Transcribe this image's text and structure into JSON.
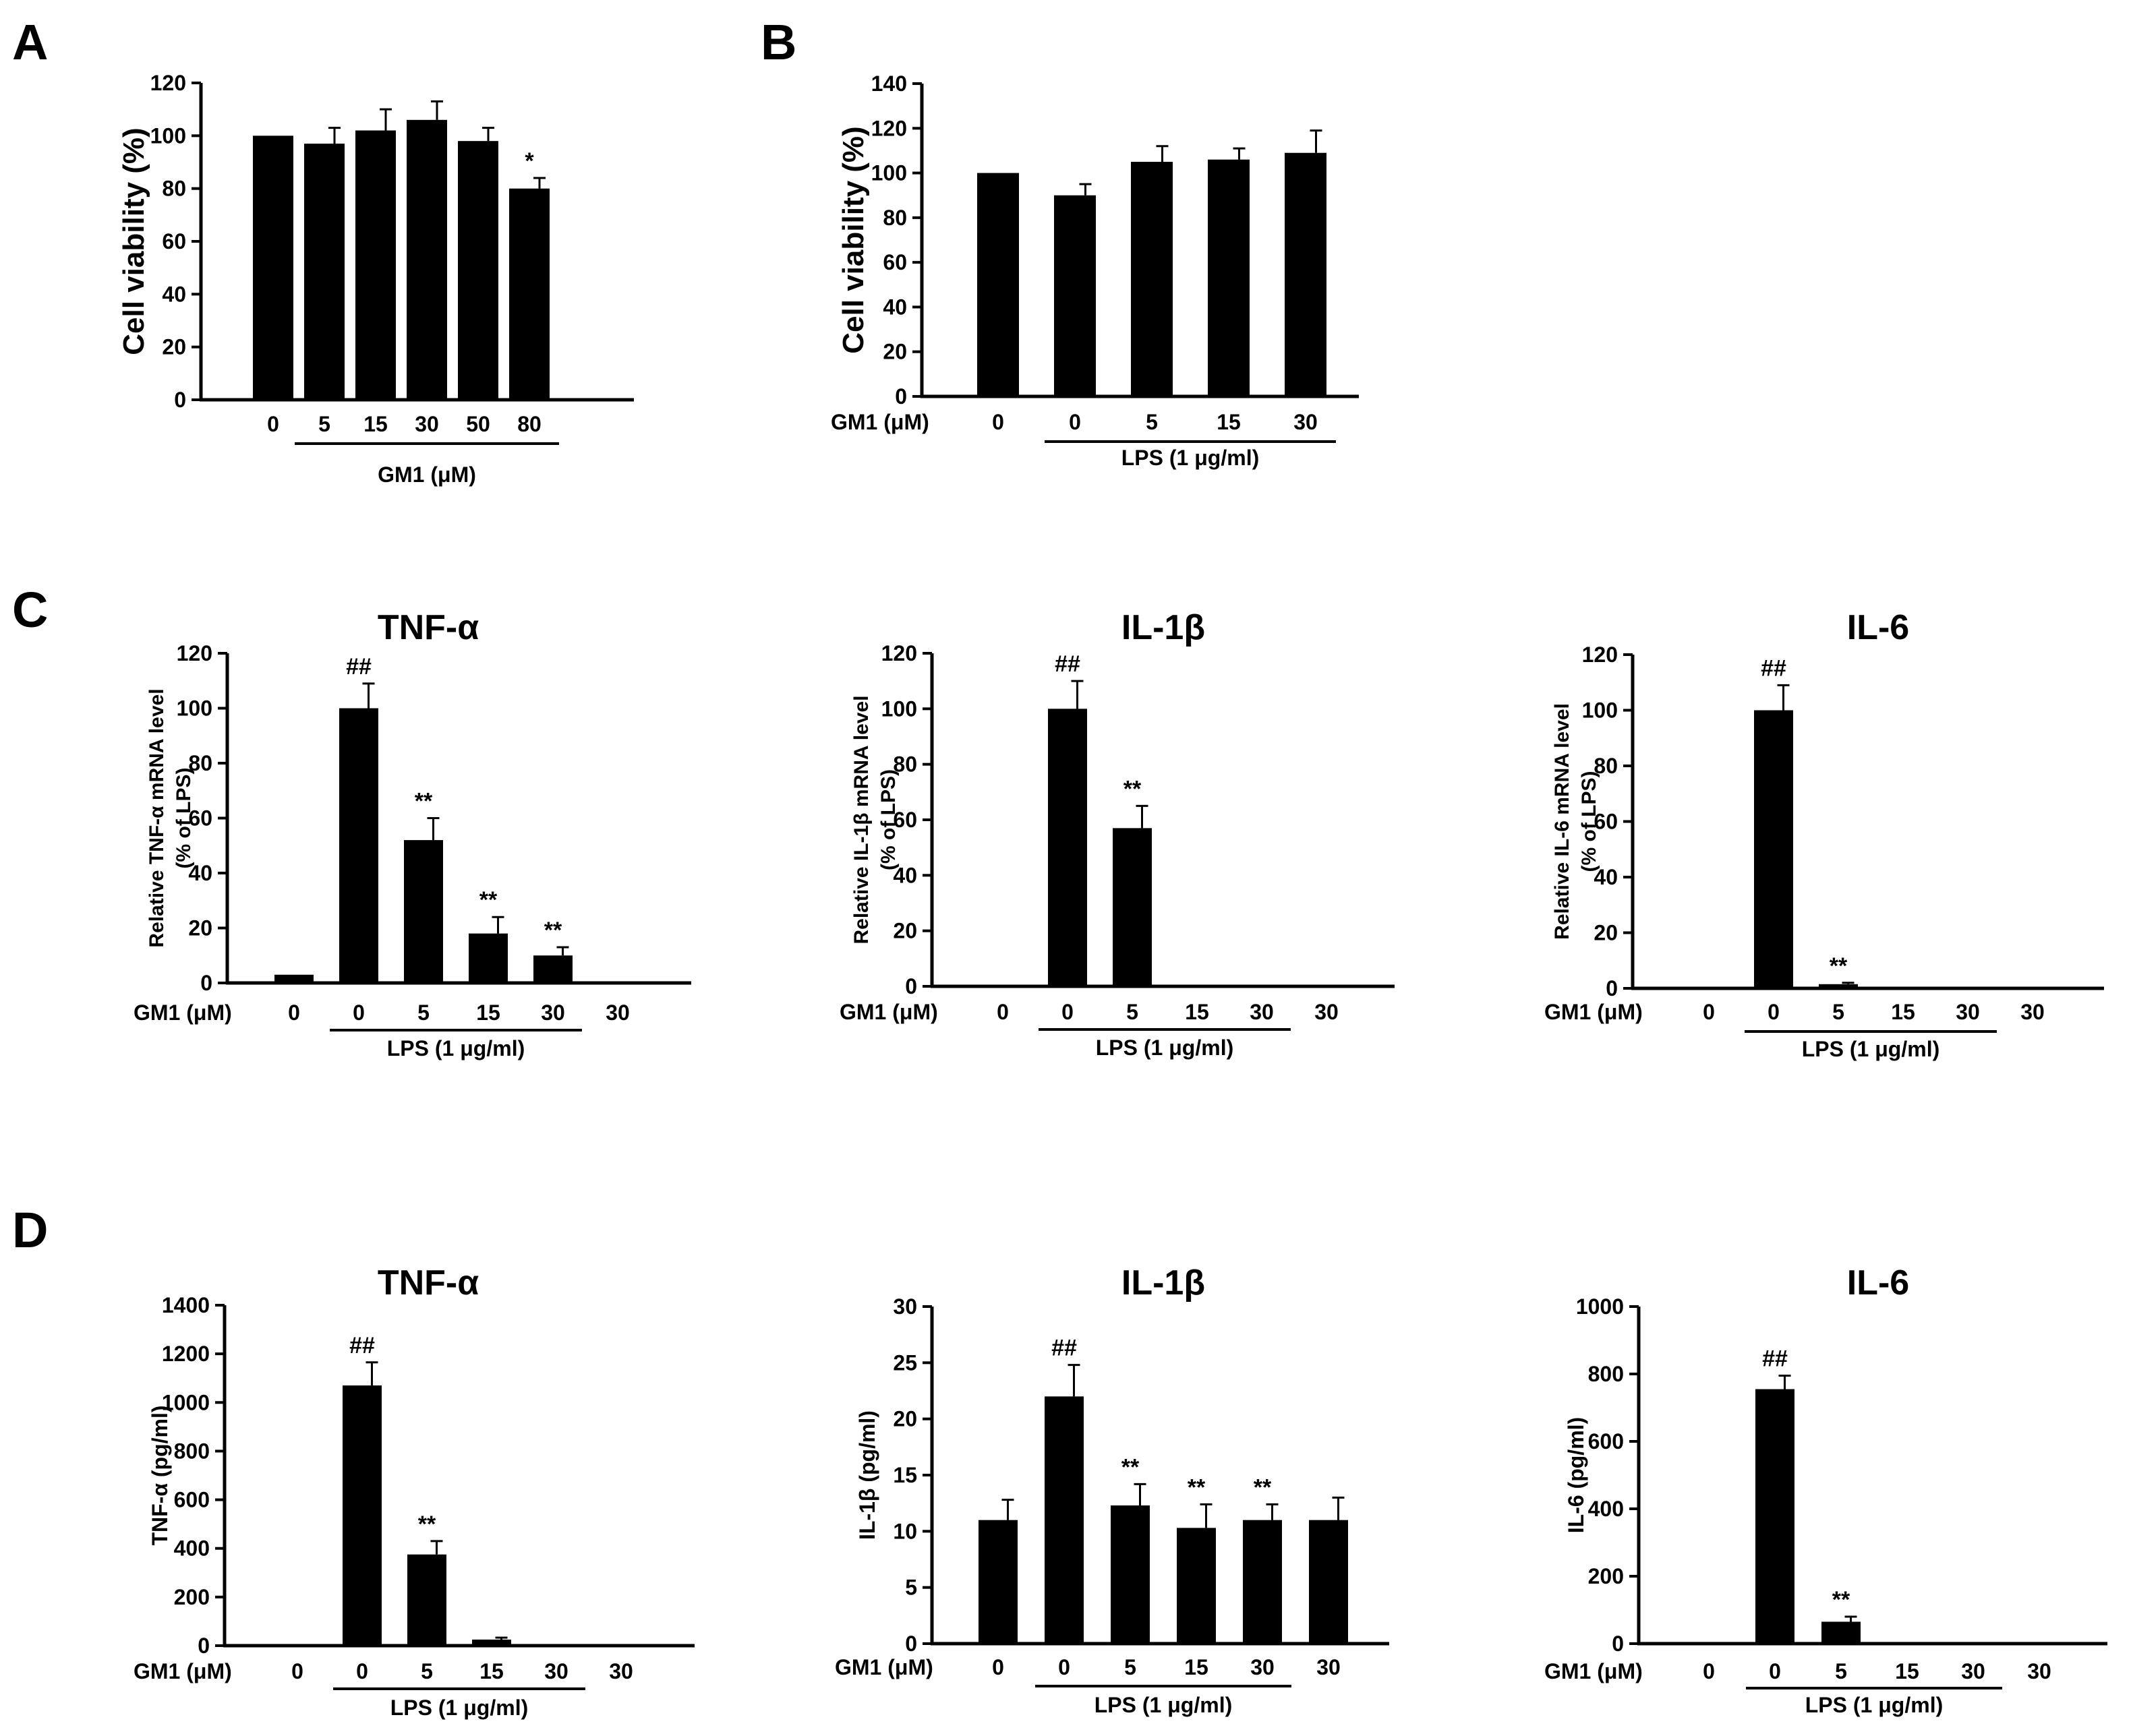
{
  "panel_letters": {
    "a": "A",
    "b": "B",
    "c": "C",
    "d": "D"
  },
  "colors": {
    "bar": "#000000",
    "axis": "#000000",
    "background": "#ffffff"
  },
  "chart_data": [
    {
      "id": "A",
      "type": "bar",
      "title": "",
      "ylabel": "Cell viability (%)",
      "ylabel_lines": [],
      "ylim": [
        0,
        120
      ],
      "ticks": [
        0,
        20,
        40,
        60,
        80,
        100,
        120
      ],
      "xlabel_prefix": "",
      "categories": [
        "0",
        "5",
        "15",
        "30",
        "50",
        "80"
      ],
      "values": [
        100,
        97,
        102,
        106,
        98,
        80
      ],
      "errors": [
        0,
        6,
        8,
        7,
        5,
        4
      ],
      "significance": [
        "",
        "",
        "",
        "",
        "",
        "*"
      ],
      "group_label": "GM1 (μM)",
      "group_range": [
        1,
        5
      ]
    },
    {
      "id": "B",
      "type": "bar",
      "title": "",
      "ylabel": "Cell viability (%)",
      "ylabel_lines": [],
      "ylim": [
        0,
        140
      ],
      "ticks": [
        0,
        20,
        40,
        60,
        80,
        100,
        120,
        140
      ],
      "xlabel_prefix": "GM1 (μM)",
      "categories": [
        "0",
        "0",
        "5",
        "15",
        "30"
      ],
      "values": [
        100,
        90,
        105,
        106,
        109
      ],
      "errors": [
        0,
        5,
        7,
        5,
        10
      ],
      "significance": [
        "",
        "",
        "",
        "",
        ""
      ],
      "group_label": "LPS (1 μg/ml)",
      "group_range": [
        1,
        4
      ]
    },
    {
      "id": "C1",
      "type": "bar",
      "title": "TNF-α",
      "ylabel": "",
      "ylabel_lines": [
        "Relative TNF-α mRNA level",
        "(% of LPS)"
      ],
      "ylim": [
        0,
        120
      ],
      "ticks": [
        0,
        20,
        40,
        60,
        80,
        100,
        120
      ],
      "xlabel_prefix": "GM1 (μM)",
      "categories": [
        "0",
        "0",
        "5",
        "15",
        "30",
        "30"
      ],
      "values": [
        3,
        100,
        52,
        18,
        10,
        0
      ],
      "errors": [
        0,
        9,
        8,
        6,
        3,
        0
      ],
      "significance": [
        "",
        "##",
        "**",
        "**",
        "**",
        ""
      ],
      "group_label": "LPS (1 μg/ml)",
      "group_range": [
        1,
        4
      ]
    },
    {
      "id": "C2",
      "type": "bar",
      "title": "IL-1β",
      "ylabel": "",
      "ylabel_lines": [
        "Relative IL-1β mRNA level",
        "(% of LPS)"
      ],
      "ylim": [
        0,
        120
      ],
      "ticks": [
        0,
        20,
        40,
        60,
        80,
        100,
        120
      ],
      "xlabel_prefix": "GM1 (μM)",
      "categories": [
        "0",
        "0",
        "5",
        "15",
        "30",
        "30"
      ],
      "values": [
        0,
        100,
        57,
        0,
        0,
        0
      ],
      "errors": [
        0,
        10,
        8,
        0,
        0,
        0
      ],
      "significance": [
        "",
        "##",
        "**",
        "",
        "",
        ""
      ],
      "group_label": "LPS (1 μg/ml)",
      "group_range": [
        1,
        4
      ]
    },
    {
      "id": "C3",
      "type": "bar",
      "title": "IL-6",
      "ylabel": "",
      "ylabel_lines": [
        "Relative IL-6 mRNA level",
        "(% of LPS)"
      ],
      "ylim": [
        0,
        120
      ],
      "ticks": [
        0,
        20,
        40,
        60,
        80,
        100,
        120
      ],
      "xlabel_prefix": "GM1 (μM)",
      "categories": [
        "0",
        "0",
        "5",
        "15",
        "30",
        "30"
      ],
      "values": [
        0,
        100,
        1.5,
        0,
        0,
        0
      ],
      "errors": [
        0,
        9,
        0.5,
        0,
        0,
        0
      ],
      "significance": [
        "",
        "##",
        "**",
        "",
        "",
        ""
      ],
      "group_label": "LPS (1 μg/ml)",
      "group_range": [
        1,
        4
      ]
    },
    {
      "id": "D1",
      "type": "bar",
      "title": "TNF-α",
      "ylabel": "TNF-α (pg/ml)",
      "ylabel_lines": [],
      "ylim": [
        0,
        1400
      ],
      "ticks": [
        0,
        200,
        400,
        600,
        800,
        1000,
        1200,
        1400
      ],
      "xlabel_prefix": "GM1 (μM)",
      "categories": [
        "0",
        "0",
        "5",
        "15",
        "30",
        "30"
      ],
      "values": [
        0,
        1070,
        375,
        25,
        0,
        0
      ],
      "errors": [
        0,
        95,
        55,
        8,
        0,
        0
      ],
      "significance": [
        "",
        "##",
        "**",
        "",
        "",
        ""
      ],
      "group_label": "LPS (1 μg/ml)",
      "group_range": [
        1,
        4
      ]
    },
    {
      "id": "D2",
      "type": "bar",
      "title": "IL-1β",
      "ylabel": "IL-1β (pg/ml)",
      "ylabel_lines": [],
      "ylim": [
        0,
        30
      ],
      "ticks": [
        0,
        5,
        10,
        15,
        20,
        25,
        30
      ],
      "xlabel_prefix": "GM1 (μM)",
      "categories": [
        "0",
        "0",
        "5",
        "15",
        "30",
        "30"
      ],
      "values": [
        11,
        22,
        12.3,
        10.3,
        11,
        11
      ],
      "errors": [
        1.8,
        2.8,
        1.9,
        2.1,
        1.4,
        2.0
      ],
      "significance": [
        "",
        "##",
        "**",
        "**",
        "**",
        ""
      ],
      "group_label": "LPS (1 μg/ml)",
      "group_range": [
        1,
        4
      ]
    },
    {
      "id": "D3",
      "type": "bar",
      "title": "IL-6",
      "ylabel": "IL-6 (pg/ml)",
      "ylabel_lines": [],
      "ylim": [
        0,
        1000
      ],
      "ticks": [
        0,
        200,
        400,
        600,
        800,
        1000
      ],
      "xlabel_prefix": "GM1 (μM)",
      "categories": [
        "0",
        "0",
        "5",
        "15",
        "30",
        "30"
      ],
      "values": [
        0,
        755,
        65,
        0,
        0,
        0
      ],
      "errors": [
        0,
        40,
        15,
        0,
        0,
        0
      ],
      "significance": [
        "",
        "##",
        "**",
        "",
        "",
        ""
      ],
      "group_label": "LPS (1 μg/ml)",
      "group_range": [
        1,
        4
      ]
    }
  ]
}
